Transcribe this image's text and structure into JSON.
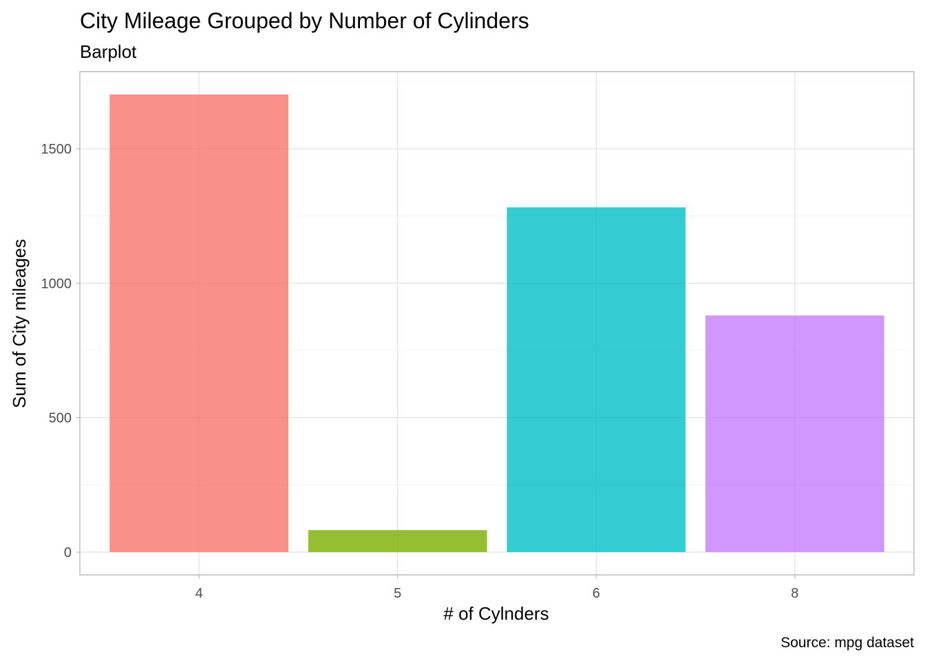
{
  "chart_data": {
    "type": "bar",
    "title": "City Mileage Grouped by Number of Cylinders",
    "subtitle": "Barplot",
    "xlabel": "# of Cylnders",
    "ylabel": "Sum of City mileages",
    "caption": "Source: mpg dataset",
    "categories": [
      "4",
      "5",
      "6",
      "8"
    ],
    "values": [
      1702,
      82,
      1282,
      880
    ],
    "colors": [
      "#F8766D",
      "#7CAE00",
      "#00BFC4",
      "#C77CFF"
    ],
    "bar_opacity": 0.8,
    "ylim": [
      -85,
      1787
    ],
    "yticks": [
      0,
      500,
      1000,
      1500
    ],
    "ytick_labels": [
      "0",
      "500",
      "1000",
      "1500"
    ],
    "grid": true,
    "legend": "none"
  }
}
